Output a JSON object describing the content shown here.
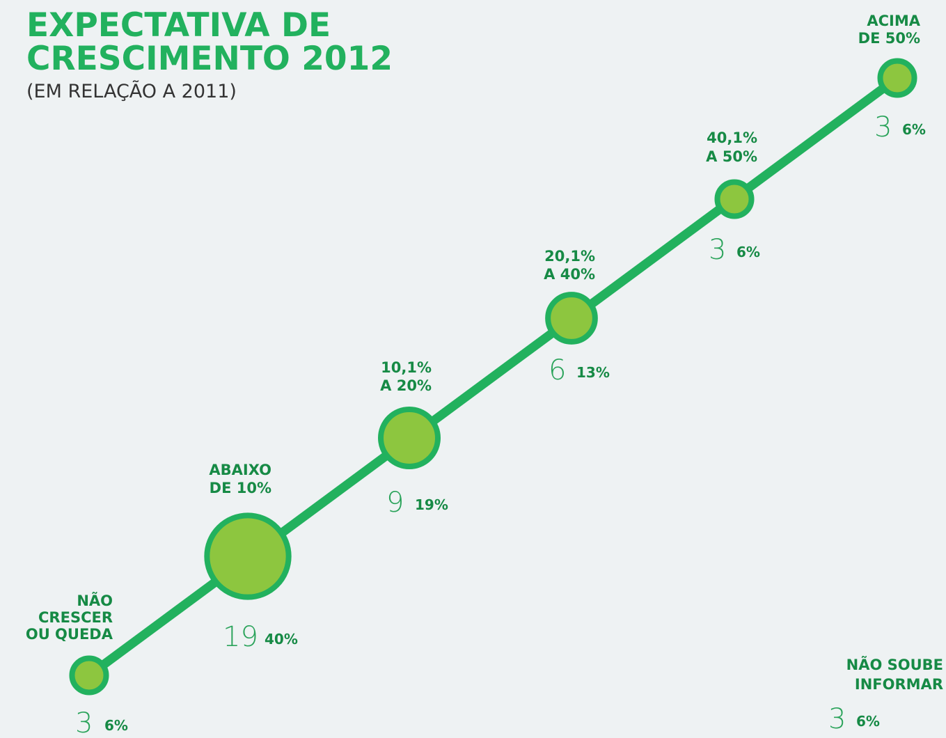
{
  "header": {
    "title_lines": [
      "EXPECTATIVA DE",
      "CRESCIMENTO 2012"
    ],
    "subtitle": "(EM RELAÇÃO A 2011)"
  },
  "items": [
    {
      "label_lines": [
        "NÃO",
        "CRESCER",
        "OU QUEDA"
      ],
      "count": 3,
      "percent": "6%"
    },
    {
      "label_lines": [
        "ABAIXO",
        "DE 10%"
      ],
      "count": 19,
      "percent": "40%"
    },
    {
      "label_lines": [
        "10,1%",
        "A 20%"
      ],
      "count": 9,
      "percent": "19%"
    },
    {
      "label_lines": [
        "20,1%",
        "A 40%"
      ],
      "count": 6,
      "percent": "13%"
    },
    {
      "label_lines": [
        "40,1%",
        "A 50%"
      ],
      "count": 3,
      "percent": "6%"
    },
    {
      "label_lines": [
        "ACIMA",
        "DE 50%"
      ],
      "count": 3,
      "percent": "6%"
    },
    {
      "label_lines": [
        "NÃO SOUBE",
        "INFORMAR"
      ],
      "count": 3,
      "percent": "6%"
    }
  ]
}
